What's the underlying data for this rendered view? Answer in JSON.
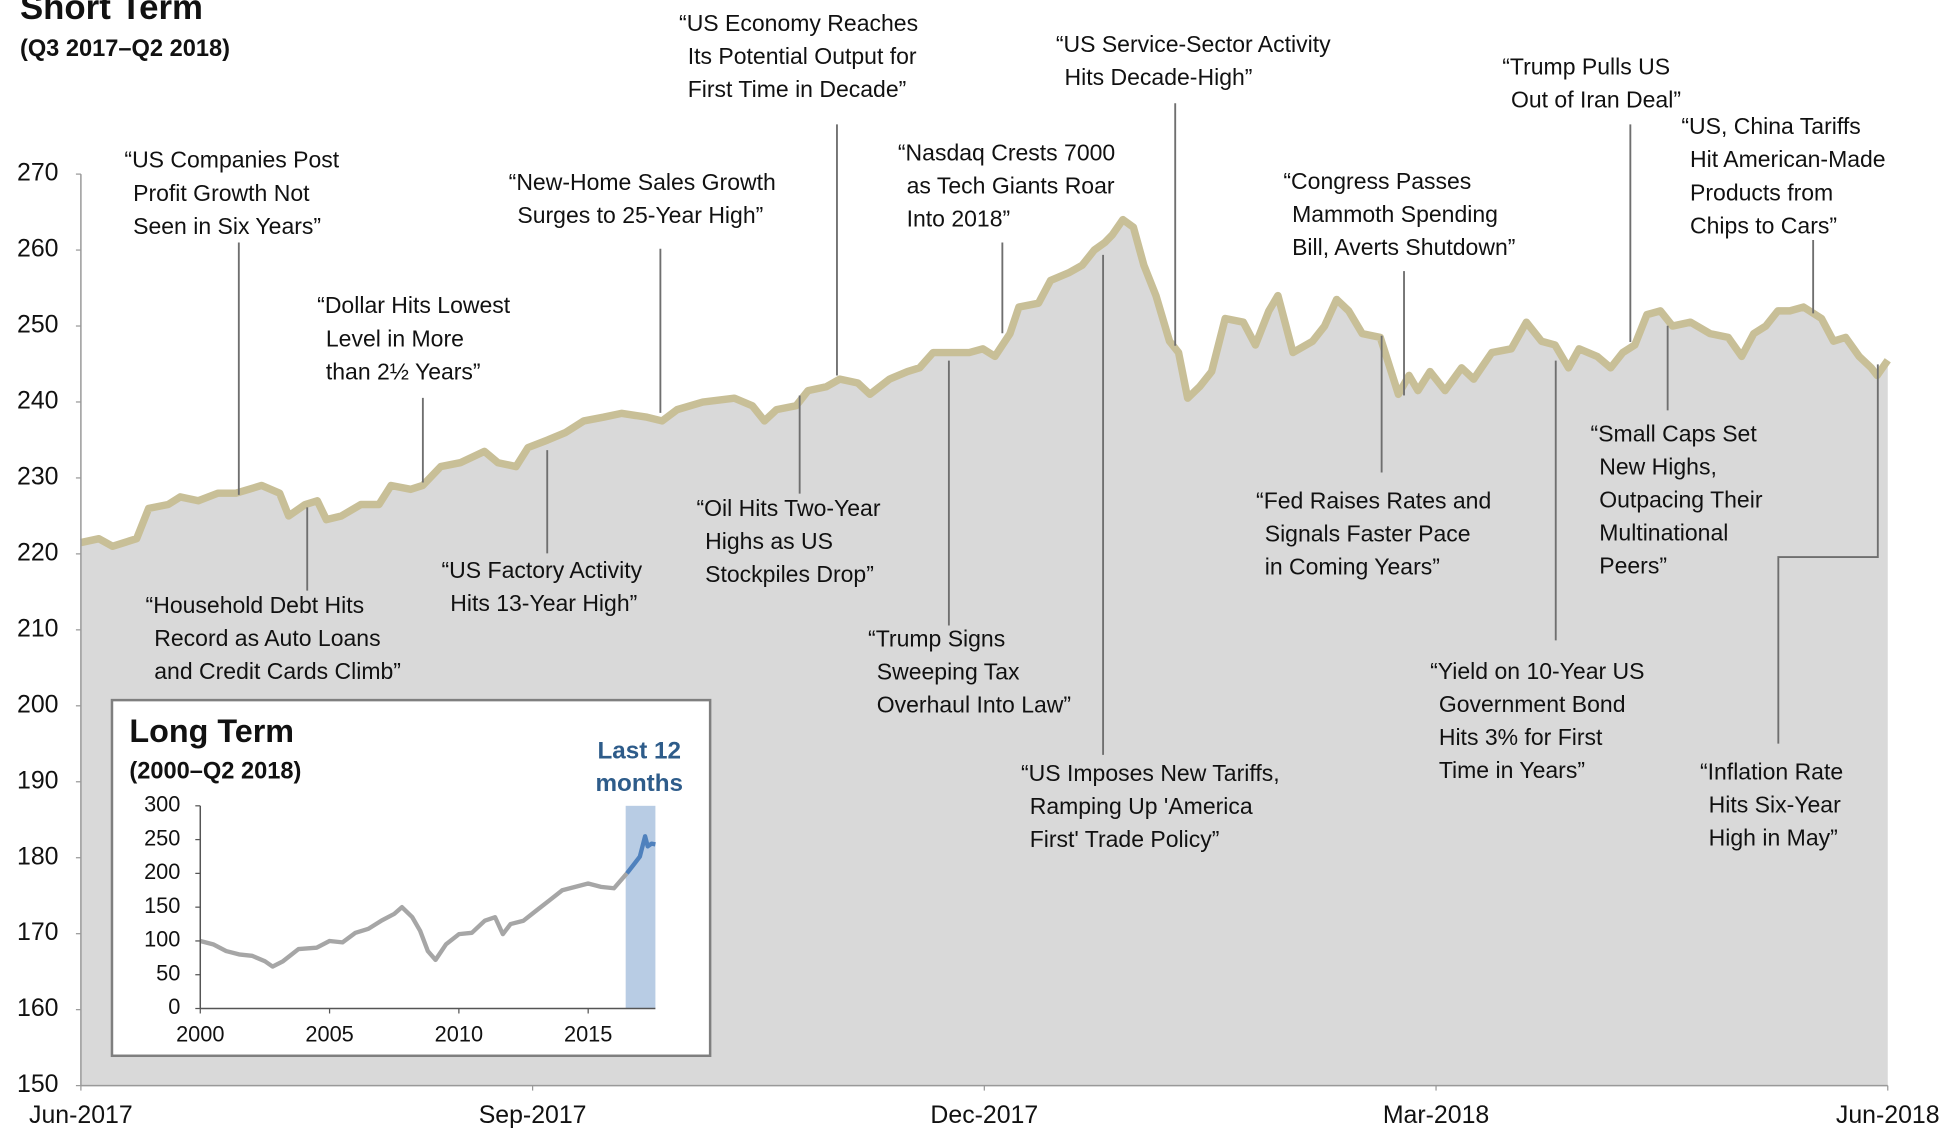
{
  "chart_data": [
    {
      "type": "area",
      "title": "Short Term",
      "subtitle": "(Q3 2017–Q2 2018)",
      "xlim": [
        0,
        12
      ],
      "xticks": [
        {
          "value": 0,
          "label": "Jun-2017"
        },
        {
          "value": 3,
          "label": "Sep-2017"
        },
        {
          "value": 6,
          "label": "Dec-2017"
        },
        {
          "value": 9,
          "label": "Mar-2018"
        },
        {
          "value": 12,
          "label": "Jun-2018"
        }
      ],
      "ylim": [
        150,
        270
      ],
      "yticks": [
        150,
        160,
        170,
        180,
        190,
        200,
        210,
        220,
        230,
        240,
        250,
        260,
        270
      ],
      "grid": false,
      "fill_color": "#d9d9d9",
      "series": [
        {
          "color": "#c8bf97",
          "x": [
            0,
            0.12,
            0.21,
            0.37,
            0.45,
            0.58,
            0.66,
            0.78,
            0.91,
            1.03,
            1.2,
            1.32,
            1.38,
            1.49,
            1.57,
            1.63,
            1.73,
            1.86,
            1.98,
            2.06,
            2.19,
            2.27,
            2.39,
            2.52,
            2.68,
            2.77,
            2.89,
            2.97,
            3.1,
            3.22,
            3.34,
            3.47,
            3.59,
            3.76,
            3.86,
            3.96,
            4.13,
            4.34,
            4.46,
            4.54,
            4.62,
            4.75,
            4.83,
            4.95,
            5.04,
            5.16,
            5.24,
            5.37,
            5.49,
            5.57,
            5.66,
            5.74,
            5.9,
            5.99,
            6.07,
            6.17,
            6.23,
            6.36,
            6.44,
            6.56,
            6.65,
            6.73,
            6.8,
            6.85,
            6.92,
            6.99,
            7.06,
            7.14,
            7.23,
            7.29,
            7.35,
            7.43,
            7.51,
            7.6,
            7.72,
            7.8,
            7.89,
            7.95,
            8.05,
            8.18,
            8.26,
            8.34,
            8.42,
            8.51,
            8.63,
            8.75,
            8.82,
            8.88,
            8.96,
            9.06,
            9.17,
            9.25,
            9.37,
            9.5,
            9.6,
            9.7,
            9.79,
            9.88,
            9.95,
            10.07,
            10.16,
            10.24,
            10.32,
            10.4,
            10.49,
            10.57,
            10.69,
            10.82,
            10.94,
            11.03,
            11.11,
            11.19,
            11.27,
            11.35,
            11.44,
            11.56,
            11.64,
            11.72,
            11.81,
            11.89,
            11.93,
            12
          ],
          "values": [
            221.5,
            222,
            221,
            222,
            226,
            226.5,
            227.5,
            227,
            228,
            228,
            229,
            228,
            225,
            226.5,
            227,
            224.5,
            225,
            226.5,
            226.5,
            229,
            228.5,
            229,
            231.5,
            232,
            233.5,
            232,
            231.5,
            234,
            235,
            236,
            237.5,
            238,
            238.5,
            238,
            237.5,
            239,
            240,
            240.5,
            239.5,
            237.5,
            239,
            239.5,
            241.5,
            242,
            243,
            242.5,
            241,
            243,
            244,
            244.5,
            246.5,
            246.5,
            246.5,
            247,
            246,
            249,
            252.5,
            253,
            256,
            257,
            258,
            260,
            261,
            262,
            264,
            263,
            258,
            254,
            248,
            246.5,
            240.5,
            242,
            244,
            251,
            250.5,
            247.5,
            252,
            254,
            246.5,
            248,
            250,
            253.5,
            252,
            249,
            248.5,
            241,
            243.5,
            241.5,
            244,
            241.5,
            244.5,
            243,
            246.5,
            247,
            250.5,
            248,
            247.5,
            244.5,
            247,
            246,
            244.5,
            246.5,
            247.5,
            251.5,
            252,
            250,
            250.5,
            249,
            248.5,
            246,
            249,
            250,
            252,
            252,
            252.5,
            251,
            248,
            248.5,
            246,
            244.5,
            243.5,
            245.5
          ]
        }
      ],
      "annotations": [
        [
          "“US Companies Post",
          "Profit Growth Not",
          "Seen in Six Years”"
        ],
        [
          "“Dollar Hits Lowest",
          "Level in More",
          "than 2½ Years”"
        ],
        [
          "“New-Home Sales Growth",
          "Surges to 25-Year High”"
        ],
        [
          "“US Economy Reaches",
          "Its Potential Output for",
          "First Time in Decade”"
        ],
        [
          "“Nasdaq Crests 7000",
          "as Tech Giants Roar",
          "Into 2018”"
        ],
        [
          "“US Service-Sector Activity",
          "Hits Decade-High”"
        ],
        [
          "“Trump Pulls US",
          "Out of Iran Deal”"
        ],
        [
          "“US, China Tariffs",
          "Hit American-Made",
          "Products from",
          "Chips to Cars”"
        ],
        [
          "“Congress Passes",
          "Mammoth Spending",
          "Bill, Averts Shutdown”"
        ],
        [
          "“Household Debt Hits",
          "Record as Auto Loans",
          "and Credit Cards Climb”"
        ],
        [
          "“US Factory Activity",
          "Hits 13-Year High”"
        ],
        [
          "“Oil Hits Two-Year",
          "Highs as US",
          "Stockpiles Drop”"
        ],
        [
          "“Trump Signs",
          "Sweeping Tax",
          "Overhaul Into Law”"
        ],
        [
          "“US Imposes New Tariffs,",
          "Ramping Up 'America",
          "First' Trade Policy”"
        ],
        [
          "“Fed Raises Rates and",
          "Signals Faster Pace",
          "in Coming Years”"
        ],
        [
          "“Yield on 10-Year US",
          "Government Bond",
          "Hits 3% for First",
          "Time in Years”"
        ],
        [
          "“Small Caps Set",
          "New Highs,",
          "Outpacing Their",
          "Multinational",
          "Peers”"
        ],
        [
          "“Inflation Rate",
          "Hits Six-Year",
          "High in May”"
        ]
      ]
    },
    {
      "type": "line",
      "title": "Long Term",
      "subtitle": "(2000–Q2 2018)",
      "highlight_label": [
        "Last 12",
        "months"
      ],
      "highlight": [
        2016.45,
        2017.6
      ],
      "highlight_color": "#b8cce4",
      "xlim": [
        2000,
        2017.6
      ],
      "xticks": [
        2000,
        2005,
        2010,
        2015
      ],
      "ylim": [
        0,
        300
      ],
      "yticks": [
        0,
        50,
        100,
        150,
        200,
        250,
        300
      ],
      "series": [
        {
          "color": "#a6a6a6",
          "x": [
            2000,
            2000.5,
            2001,
            2001.5,
            2002,
            2002.5,
            2002.8,
            2003.2,
            2003.8,
            2004.5,
            2005,
            2005.5,
            2006,
            2006.5,
            2007,
            2007.5,
            2007.8,
            2008.2,
            2008.5,
            2008.8,
            2009.1,
            2009.5,
            2010,
            2010.5,
            2011,
            2011.4,
            2011.7,
            2012,
            2012.5,
            2013,
            2013.5,
            2014,
            2014.5,
            2015,
            2015.5,
            2016,
            2016.5
          ],
          "values": [
            100,
            95,
            85,
            80,
            78,
            70,
            62,
            70,
            88,
            90,
            100,
            98,
            112,
            118,
            130,
            140,
            150,
            135,
            115,
            85,
            72,
            95,
            110,
            112,
            130,
            135,
            110,
            125,
            130,
            145,
            160,
            175,
            180,
            185,
            180,
            178,
            200
          ]
        },
        {
          "color": "#4f81bd",
          "x": [
            2016.5,
            2016.8,
            2017,
            2017.1,
            2017.2,
            2017.3,
            2017.45,
            2017.6
          ],
          "values": [
            200,
            215,
            225,
            240,
            255,
            240,
            244,
            243
          ]
        }
      ]
    }
  ]
}
